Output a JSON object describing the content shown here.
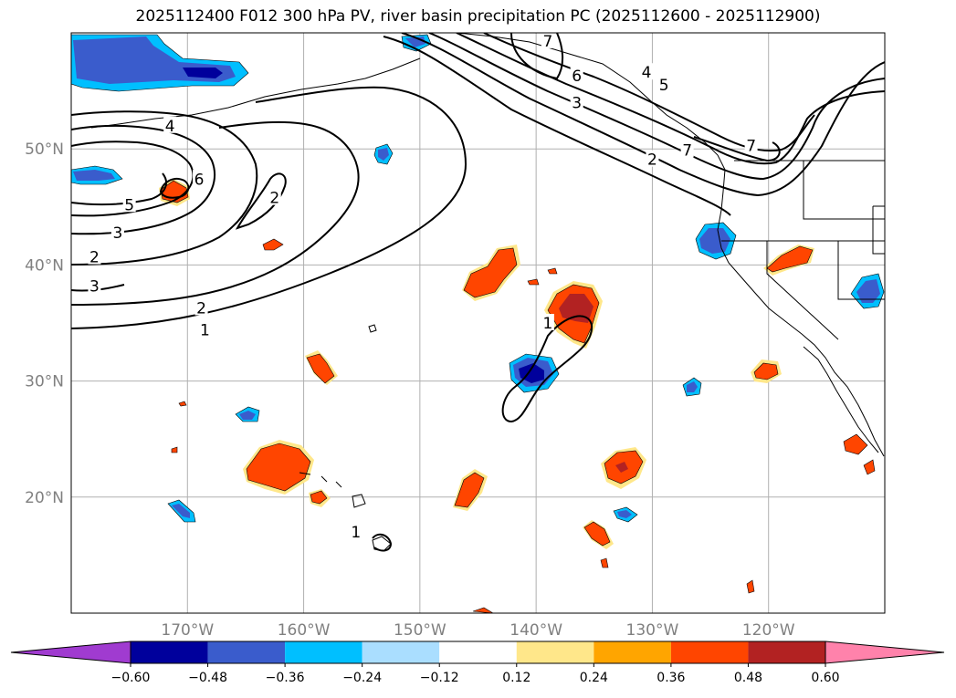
{
  "title": "2025112400 F012 300 hPa PV, river basin precipitation PC (2025112600 - 2025112900)",
  "map": {
    "lon_range": [
      -180,
      -110
    ],
    "lat_range": [
      10,
      60
    ],
    "lat_ticks": [
      {
        "value": 20,
        "label": "20°N"
      },
      {
        "value": 30,
        "label": "30°N"
      },
      {
        "value": 40,
        "label": "40°N"
      },
      {
        "value": 50,
        "label": "50°N"
      }
    ],
    "lon_ticks": [
      {
        "value": -170,
        "label": "170°W"
      },
      {
        "value": -160,
        "label": "160°W"
      },
      {
        "value": -150,
        "label": "150°W"
      },
      {
        "value": -140,
        "label": "140°W"
      },
      {
        "value": -130,
        "label": "130°W"
      },
      {
        "value": -120,
        "label": "120°W"
      }
    ]
  },
  "pv_contour_labels": [
    {
      "text": "4",
      "lon": -171.5,
      "lat": 52.0
    },
    {
      "text": "6",
      "lon": -169.0,
      "lat": 47.4
    },
    {
      "text": "5",
      "lon": -175.0,
      "lat": 45.2
    },
    {
      "text": "3",
      "lon": -176.0,
      "lat": 42.8
    },
    {
      "text": "2",
      "lon": -178.0,
      "lat": 40.7
    },
    {
      "text": "3",
      "lon": -178.0,
      "lat": 38.2
    },
    {
      "text": "2",
      "lon": -168.8,
      "lat": 36.3
    },
    {
      "text": "1",
      "lon": -168.5,
      "lat": 34.4
    },
    {
      "text": "2",
      "lon": -162.5,
      "lat": 45.8
    },
    {
      "text": "6",
      "lon": -136.5,
      "lat": 56.3
    },
    {
      "text": "3",
      "lon": -136.5,
      "lat": 54.0
    },
    {
      "text": "4",
      "lon": -130.5,
      "lat": 56.6
    },
    {
      "text": "5",
      "lon": -129.0,
      "lat": 55.5
    },
    {
      "text": "7",
      "lon": -127.0,
      "lat": 49.9
    },
    {
      "text": "7",
      "lon": -121.5,
      "lat": 50.3
    },
    {
      "text": "2",
      "lon": -130.0,
      "lat": 49.1
    },
    {
      "text": "1",
      "lon": -139.0,
      "lat": 35.0
    },
    {
      "text": "1",
      "lon": -155.5,
      "lat": 17.0
    },
    {
      "text": "7",
      "lon": -139.0,
      "lat": 59.3
    }
  ],
  "colorbar": {
    "colors": [
      "#a03bd0",
      "#00009c",
      "#3a5ccc",
      "#00bfff",
      "#aadeff",
      "#ffffff",
      "#ffe78a",
      "#ffa500",
      "#ff4500",
      "#b22222",
      "#ff82ab"
    ],
    "tick_labels": [
      "−0.60",
      "−0.48",
      "−0.36",
      "−0.24",
      "−0.12",
      "0.12",
      "0.24",
      "0.36",
      "0.48",
      "0.60"
    ]
  }
}
